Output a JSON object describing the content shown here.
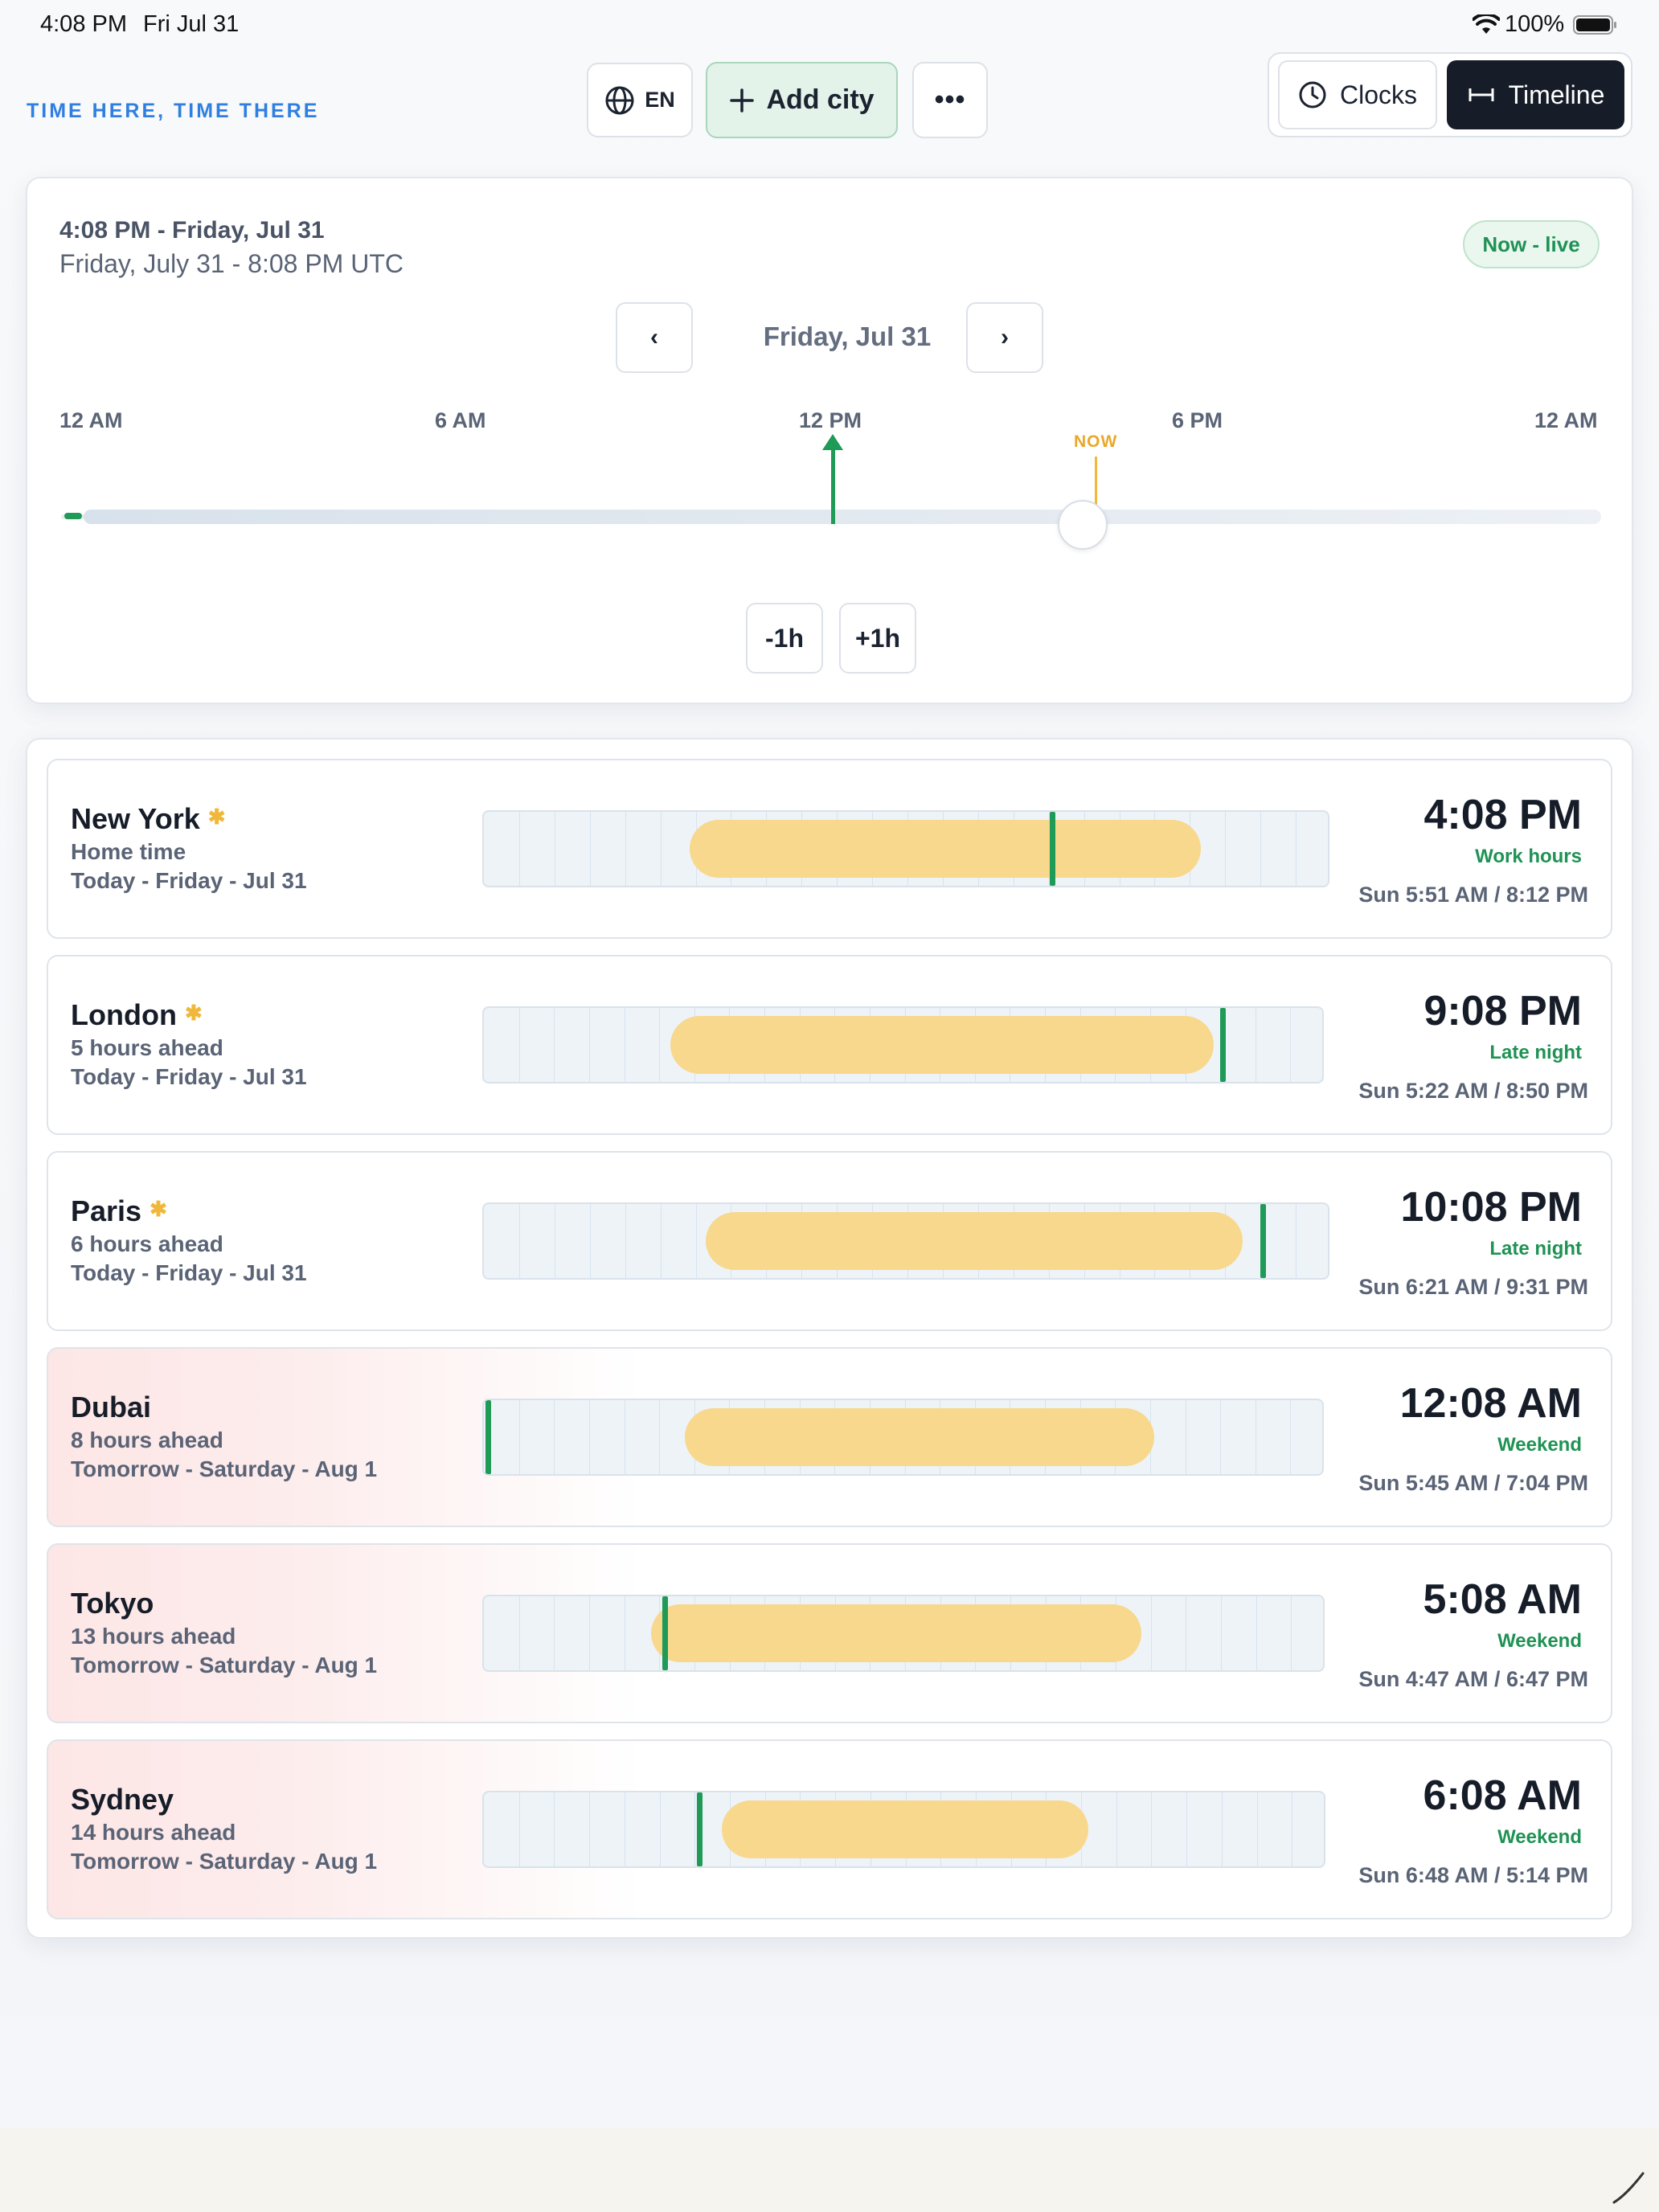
{
  "status_bar": {
    "time": "4:08 PM",
    "date": "Fri Jul 31",
    "battery": "100%"
  },
  "header": {
    "app_title": "TIME HERE, TIME THERE",
    "lang_label": "EN",
    "add_city_label": "Add city",
    "more_label": "•••",
    "views": {
      "clocks_label": "Clocks",
      "timeline_label": "Timeline",
      "active": "Timeline"
    }
  },
  "selector": {
    "line1": "4:08 PM - Friday, Jul 31",
    "line2": "Friday, July 31 - 8:08 PM UTC",
    "live_badge": "Now - live",
    "prev_label": "‹",
    "next_label": "›",
    "day_label": "Friday, Jul 31",
    "axis_labels": [
      "12 AM",
      "6 AM",
      "12 PM",
      "6 PM",
      "12 AM"
    ],
    "now_label": "NOW",
    "now_hour": 16.13,
    "minus_label": "-1h",
    "plus_label": "+1h"
  },
  "cities": [
    {
      "name": "New York",
      "starred": true,
      "offset": "Home time",
      "date": "Today - Friday - Jul 31",
      "time": "4:08 PM",
      "status": "Work hours",
      "sun": "Sun 5:51 AM / 8:12 PM"
    },
    {
      "name": "London",
      "starred": true,
      "offset": "5 hours ahead",
      "date": "Today - Friday - Jul 31",
      "time": "9:08 PM",
      "status": "Late night",
      "sun": "Sun 5:22 AM / 8:50 PM"
    },
    {
      "name": "Paris",
      "starred": true,
      "offset": "6 hours ahead",
      "date": "Today - Friday - Jul 31",
      "time": "10:08 PM",
      "status": "Late night",
      "sun": "Sun 6:21 AM / 9:31 PM"
    },
    {
      "name": "Dubai",
      "starred": false,
      "offset": "8 hours ahead",
      "date": "Tomorrow - Saturday - Aug 1",
      "time": "12:08 AM",
      "status": "Weekend",
      "sun": "Sun 5:45 AM / 7:04 PM"
    },
    {
      "name": "Tokyo",
      "starred": false,
      "offset": "13 hours ahead",
      "date": "Tomorrow - Saturday - Aug 1",
      "time": "5:08 AM",
      "status": "Weekend",
      "sun": "Sun 4:47 AM / 6:47 PM"
    },
    {
      "name": "Sydney",
      "starred": false,
      "offset": "14 hours ahead",
      "date": "Tomorrow - Saturday - Aug 1",
      "time": "6:08 AM",
      "status": "Weekend",
      "sun": "Sun 6:48 AM / 5:14 PM"
    }
  ],
  "colors": {
    "accent": "#2f7fe0",
    "green": "#1f9a57",
    "daylight": "#f7d88d",
    "now": "#f0b73a",
    "tomorrow_tint": "#fde6e6"
  }
}
